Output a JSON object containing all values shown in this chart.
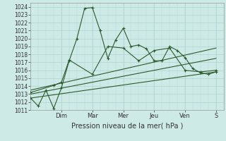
{
  "xlabel": "Pression niveau de la mer( hPa )",
  "background_color": "#ceeae7",
  "grid_color": "#aed4d0",
  "line_color": "#2d5a2d",
  "ylim": [
    1011,
    1024.5
  ],
  "yticks": [
    1011,
    1012,
    1013,
    1014,
    1015,
    1016,
    1017,
    1018,
    1019,
    1020,
    1021,
    1022,
    1023,
    1024
  ],
  "x_day_labels": [
    "Dim",
    "Mar",
    "Mer",
    "Jeu",
    "Ven",
    "S"
  ],
  "x_day_positions": [
    2.0,
    4.0,
    6.0,
    8.0,
    10.0,
    12.0
  ],
  "xlim": [
    0,
    12.5
  ],
  "series1_x": [
    0,
    0.5,
    1.0,
    1.5,
    2.0,
    2.5,
    3.0,
    3.5,
    4.0,
    4.5,
    5.0,
    5.5,
    6.0,
    6.5,
    7.0,
    7.5,
    8.0,
    8.5,
    9.0,
    9.5,
    10.0,
    10.5,
    11.0,
    11.5,
    12.0
  ],
  "series1_y": [
    1012.5,
    1011.5,
    1013.5,
    1011.2,
    1013.8,
    1017.2,
    1020.0,
    1023.8,
    1023.9,
    1021.0,
    1017.5,
    1019.8,
    1021.3,
    1019.0,
    1019.2,
    1018.7,
    1017.2,
    1017.2,
    1019.0,
    1018.5,
    1017.6,
    1016.2,
    1015.7,
    1015.5,
    1015.8
  ],
  "series2_x": [
    0,
    1.5,
    2.0,
    2.5,
    4.0,
    5.0,
    6.0,
    7.0,
    8.0,
    9.0,
    10.0,
    11.0,
    12.0
  ],
  "series2_y": [
    1013.2,
    1014.1,
    1014.5,
    1017.3,
    1015.5,
    1019.0,
    1018.8,
    1017.2,
    1018.5,
    1018.8,
    1016.0,
    1015.8,
    1016.0
  ],
  "series3_x": [
    0,
    12.0
  ],
  "series3_y": [
    1013.0,
    1017.5
  ],
  "series4_x": [
    0,
    12.0
  ],
  "series4_y": [
    1013.5,
    1018.8
  ],
  "series5_x": [
    0,
    12.0
  ],
  "series5_y": [
    1012.5,
    1015.8
  ]
}
